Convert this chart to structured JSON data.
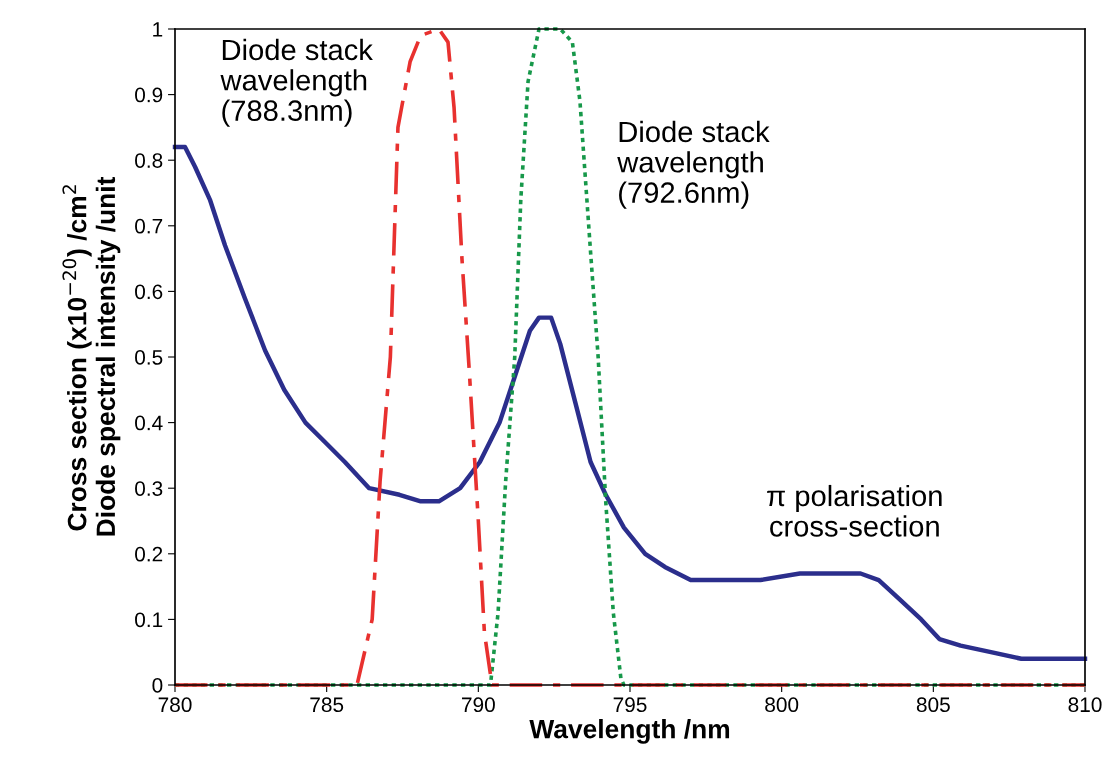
{
  "chart_data": {
    "type": "line",
    "xlabel": "Wavelength /nm",
    "ylabel": "Cross section (x10$^{−20}$) /cm$^{2}$\nDiode spectral intensity /unit",
    "xlim": [
      780,
      810
    ],
    "ylim": [
      0,
      1
    ],
    "xticks": [
      780,
      785,
      790,
      795,
      800,
      805,
      810
    ],
    "yticks": [
      0,
      0.1,
      0.2,
      0.3,
      0.4,
      0.5,
      0.6,
      0.7,
      0.8,
      0.9,
      1
    ],
    "grid": false,
    "legend": false,
    "marker": "none",
    "series": [
      {
        "color": "#2b2e8c",
        "line_style": "solid",
        "x": [
          780,
          780.33,
          780.66,
          781.15,
          781.65,
          782.3,
          782.97,
          783.6,
          784.3,
          784.95,
          785.6,
          786.4,
          787.4,
          788.1,
          788.7,
          789.4,
          790.05,
          790.7,
          791.2,
          791.7,
          792.0,
          792.4,
          792.7,
          793.2,
          793.7,
          794.2,
          794.8,
          795.5,
          796.15,
          797,
          798,
          799.3,
          800.6,
          801.6,
          802.6,
          803.2,
          803.9,
          804.6,
          805.2,
          805.9,
          806.9,
          807.9,
          810
        ],
        "values": [
          0.82,
          0.82,
          0.79,
          0.74,
          0.67,
          0.59,
          0.51,
          0.45,
          0.4,
          0.37,
          0.34,
          0.3,
          0.29,
          0.28,
          0.28,
          0.3,
          0.34,
          0.4,
          0.47,
          0.54,
          0.56,
          0.56,
          0.52,
          0.43,
          0.34,
          0.29,
          0.24,
          0.2,
          0.18,
          0.16,
          0.16,
          0.16,
          0.17,
          0.17,
          0.17,
          0.16,
          0.13,
          0.1,
          0.07,
          0.06,
          0.05,
          0.04,
          0.04
        ]
      },
      {
        "color": "#17984a",
        "line_style": "dotted",
        "x": [
          780,
          790.4,
          790.65,
          790.9,
          791.2,
          791.4,
          791.64,
          792.0,
          792.7,
          793.1,
          793.35,
          793.7,
          793.95,
          794.2,
          794.45,
          794.7,
          794.8,
          810
        ],
        "values": [
          0,
          0,
          0.11,
          0.31,
          0.5,
          0.74,
          0.92,
          1,
          1,
          0.98,
          0.89,
          0.66,
          0.5,
          0.28,
          0.11,
          0.01,
          0,
          0
        ]
      },
      {
        "color": "#e8312f",
        "line_style": "dashed",
        "x": [
          780,
          786.0,
          786.5,
          786.76,
          787.1,
          787.35,
          787.75,
          788.1,
          788.7,
          789.0,
          789.2,
          789.46,
          789.7,
          790.0,
          790.2,
          790.45,
          810
        ],
        "values": [
          0,
          0,
          0.1,
          0.31,
          0.5,
          0.85,
          0.95,
          0.99,
          1,
          0.98,
          0.88,
          0.65,
          0.48,
          0.25,
          0.08,
          0,
          0
        ]
      }
    ],
    "annotations": [
      "Diode stack\nwavelength\n(788.3nm)",
      "Diode stack\nwavelength\n(792.6nm)",
      "π polarisation\ncross-section"
    ]
  }
}
